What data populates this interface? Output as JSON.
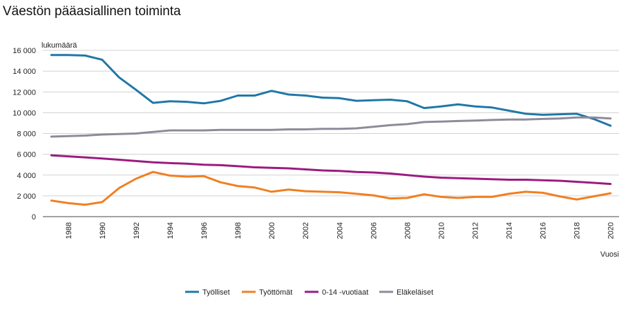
{
  "chart_data": {
    "type": "line",
    "title": "Väestön pääasiallinen toiminta",
    "ylabel": "lukumäärä",
    "xlabel": "Vuosi",
    "ylim": [
      0,
      16000
    ],
    "yticks": [
      "0",
      "2 000",
      "4 000",
      "6 000",
      "8 000",
      "10 000",
      "12 000",
      "14 000",
      "16 000"
    ],
    "ytick_values": [
      0,
      2000,
      4000,
      6000,
      8000,
      10000,
      12000,
      14000,
      16000
    ],
    "x": [
      1987,
      1988,
      1989,
      1990,
      1991,
      1992,
      1993,
      1994,
      1995,
      1996,
      1997,
      1998,
      1999,
      2000,
      2001,
      2002,
      2003,
      2004,
      2005,
      2006,
      2007,
      2008,
      2009,
      2010,
      2011,
      2012,
      2013,
      2014,
      2015,
      2016,
      2017,
      2018,
      2019,
      2020
    ],
    "xticks": [
      "1988",
      "1990",
      "1992",
      "1994",
      "1996",
      "1998",
      "2000",
      "2002",
      "2004",
      "2006",
      "2008",
      "2010",
      "2012",
      "2014",
      "2016",
      "2018",
      "2020"
    ],
    "grid": true,
    "legend_position": "bottom",
    "series": [
      {
        "name": "Työlliset",
        "color": "#1f77a8",
        "values": [
          15550,
          15550,
          15500,
          15100,
          13400,
          12200,
          10950,
          11100,
          11050,
          10900,
          11150,
          11650,
          11650,
          12100,
          11750,
          11650,
          11450,
          11400,
          11150,
          11200,
          11250,
          11100,
          10450,
          10600,
          10800,
          10600,
          10500,
          10200,
          9900,
          9800,
          9850,
          9900,
          9400,
          8750
        ]
      },
      {
        "name": "Työttömät",
        "color": "#f07f22",
        "values": [
          1550,
          1300,
          1150,
          1400,
          2750,
          3650,
          4300,
          3950,
          3850,
          3900,
          3300,
          2950,
          2800,
          2400,
          2600,
          2450,
          2400,
          2350,
          2200,
          2050,
          1750,
          1800,
          2150,
          1900,
          1800,
          1900,
          1900,
          2200,
          2400,
          2300,
          1950,
          1650,
          1950,
          2250
        ]
      },
      {
        "name": "0-14 -vuotiaat",
        "color": "#9b1b7e",
        "values": [
          5900,
          5800,
          5700,
          5600,
          5480,
          5350,
          5230,
          5150,
          5100,
          5000,
          4950,
          4850,
          4750,
          4700,
          4650,
          4550,
          4450,
          4400,
          4300,
          4250,
          4150,
          4000,
          3850,
          3750,
          3700,
          3650,
          3600,
          3550,
          3550,
          3500,
          3450,
          3350,
          3250,
          3150
        ]
      },
      {
        "name": "Eläkeläiset",
        "color": "#8f8a99",
        "values": [
          7700,
          7750,
          7800,
          7900,
          7950,
          8000,
          8150,
          8300,
          8300,
          8300,
          8350,
          8350,
          8350,
          8350,
          8400,
          8400,
          8450,
          8450,
          8500,
          8650,
          8800,
          8900,
          9100,
          9150,
          9200,
          9250,
          9300,
          9350,
          9350,
          9400,
          9450,
          9550,
          9550,
          9450
        ]
      }
    ]
  }
}
